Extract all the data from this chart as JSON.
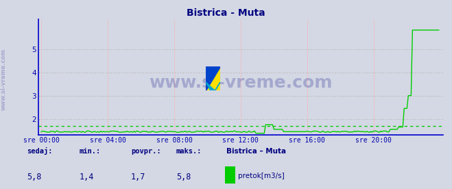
{
  "title": "Bistrica - Muta",
  "title_color": "#000080",
  "bg_color": "#d4d8e4",
  "plot_bg_color": "#d4d8e4",
  "line_color": "#00cc00",
  "avg_line_color": "#00cc00",
  "avg_value": 1.7,
  "min_value": 1.4,
  "max_value": 5.8,
  "current_value": 5.8,
  "ylabel_color": "#0000aa",
  "xlabel_color": "#0000aa",
  "axis_color": "#0000cc",
  "grid_color_h": "#bbbbbb",
  "grid_color_v": "#ffaaaa",
  "yticks": [
    2,
    3,
    4,
    5
  ],
  "ylim": [
    1.3,
    6.3
  ],
  "n_points": 288,
  "xtick_labels": [
    "sre 00:00",
    "sre 04:00",
    "sre 08:00",
    "sre 12:00",
    "sre 16:00",
    "sre 20:00"
  ],
  "xtick_positions": [
    0,
    48,
    96,
    144,
    192,
    240
  ],
  "watermark": "www.si-vreme.com",
  "watermark_color": "#000080",
  "sidebar_text": "www.si-vreme.com",
  "footer_labels": [
    "sedaj:",
    "min.:",
    "povpr.:",
    "maks.:"
  ],
  "footer_values": [
    "5,8",
    "1,4",
    "1,7",
    "5,8"
  ],
  "footer_series_title": "Bistrica – Muta",
  "footer_series_label": "pretok[m3/s]",
  "footer_color": "#000080",
  "legend_color": "#00cc00",
  "icon_yellow": "#FFE000",
  "icon_blue": "#0044CC",
  "icon_cyan": "#00AACC"
}
